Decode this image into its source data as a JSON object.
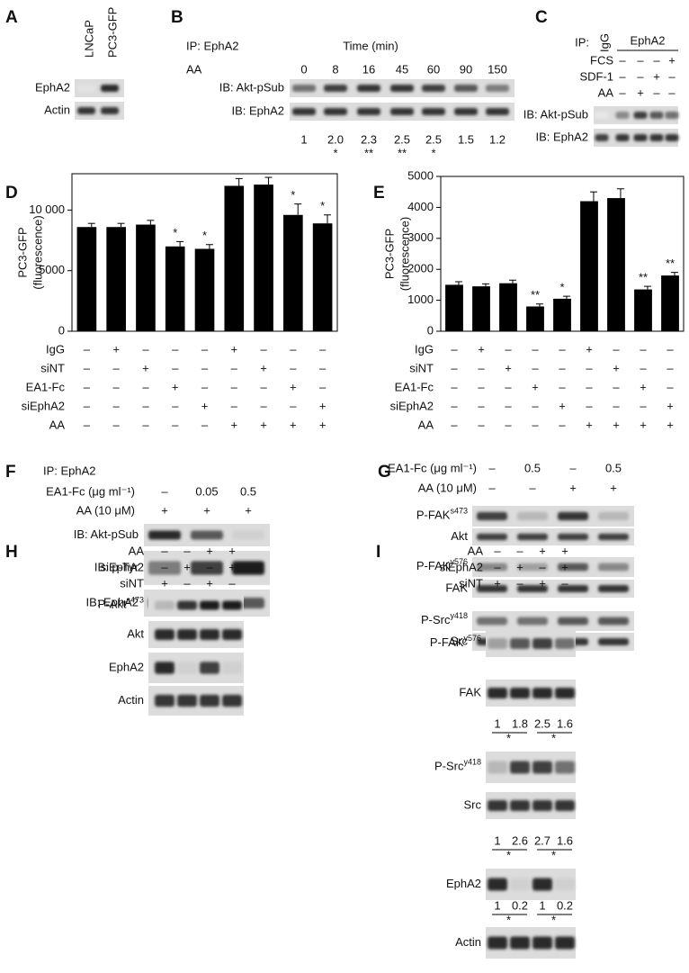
{
  "chart_data": [
    {
      "type": "bar",
      "panel": "D",
      "ylabel": [
        "PC3-GFP",
        "(fluorescence)"
      ],
      "color": "#000000",
      "values": [
        8600,
        8600,
        8800,
        7000,
        6800,
        12000,
        12100,
        9600,
        8900
      ],
      "errors": [
        300,
        300,
        350,
        400,
        350,
        600,
        600,
        900,
        700
      ],
      "annotations": [
        null,
        null,
        null,
        "*",
        "*",
        null,
        null,
        "*",
        "*"
      ],
      "ylim": [
        0,
        13000
      ],
      "yticks": [
        0,
        5000,
        {
          "value": 10000,
          "label": "10 000"
        }
      ],
      "conditions": [
        {
          "name": "IgG",
          "marks": [
            "–",
            "+",
            "–",
            "–",
            "–",
            "+",
            "–",
            "–",
            "–"
          ]
        },
        {
          "name": "siNT",
          "marks": [
            "–",
            "–",
            "+",
            "–",
            "–",
            "–",
            "+",
            "–",
            "–"
          ]
        },
        {
          "name": "EA1-Fc",
          "marks": [
            "–",
            "–",
            "–",
            "+",
            "–",
            "–",
            "–",
            "+",
            "–"
          ]
        },
        {
          "name": "siEphA2",
          "marks": [
            "–",
            "–",
            "–",
            "–",
            "+",
            "–",
            "–",
            "–",
            "+"
          ]
        },
        {
          "name": "AA",
          "marks": [
            "–",
            "–",
            "–",
            "–",
            "–",
            "+",
            "+",
            "+",
            "+"
          ]
        }
      ]
    },
    {
      "type": "bar",
      "panel": "E",
      "ylabel": [
        "PC3-GFP",
        "(fluorescence)"
      ],
      "color": "#000000",
      "values": [
        1500,
        1450,
        1550,
        800,
        1050,
        4200,
        4300,
        1350,
        1800
      ],
      "errors": [
        100,
        80,
        100,
        80,
        80,
        300,
        300,
        100,
        100
      ],
      "annotations": [
        null,
        null,
        null,
        "**",
        "*",
        null,
        null,
        "**",
        "**"
      ],
      "ylim": [
        0,
        5000
      ],
      "yticks": [
        0,
        1000,
        2000,
        3000,
        4000,
        5000
      ],
      "conditions": [
        {
          "name": "IgG",
          "marks": [
            "–",
            "+",
            "–",
            "–",
            "–",
            "+",
            "–",
            "–",
            "–"
          ]
        },
        {
          "name": "siNT",
          "marks": [
            "–",
            "–",
            "+",
            "–",
            "–",
            "–",
            "+",
            "–",
            "–"
          ]
        },
        {
          "name": "EA1-Fc",
          "marks": [
            "–",
            "–",
            "–",
            "+",
            "–",
            "–",
            "–",
            "+",
            "–"
          ]
        },
        {
          "name": "siEphA2",
          "marks": [
            "–",
            "–",
            "–",
            "–",
            "+",
            "–",
            "–",
            "–",
            "+"
          ]
        },
        {
          "name": "AA",
          "marks": [
            "–",
            "–",
            "–",
            "–",
            "–",
            "+",
            "+",
            "+",
            "+"
          ]
        }
      ]
    }
  ],
  "panels": {
    "A": {
      "label": "A",
      "lanes": [
        "LNCaP",
        "PC3-GFP"
      ],
      "rows": [
        "EphA2",
        "Actin"
      ]
    },
    "B": {
      "label": "B",
      "ip": "IP: EphA2",
      "time_label": "Time (min)",
      "aa": "AA",
      "times": [
        "0",
        "8",
        "16",
        "45",
        "60",
        "90",
        "150"
      ],
      "rows": [
        "IB: Akt-pSub",
        "IB: EphA2"
      ],
      "folds": [
        "1",
        "2.0",
        "2.3",
        "2.5",
        "2.5",
        "1.5",
        "1.2"
      ],
      "stars": [
        null,
        "*",
        "**",
        "**",
        "*",
        null,
        null
      ]
    },
    "C": {
      "label": "C",
      "ip": "IP:",
      "lanes": [
        "IgG",
        "EphA2"
      ],
      "conditions": [
        {
          "name": "FCS",
          "marks": [
            "–",
            "–",
            "–",
            "+"
          ]
        },
        {
          "name": "SDF-1",
          "marks": [
            "–",
            "–",
            "+",
            "–"
          ]
        },
        {
          "name": "AA",
          "marks": [
            "–",
            "+",
            "–",
            "–"
          ]
        }
      ],
      "rows": [
        "IB: Akt-pSub",
        "IB: EphA2"
      ]
    },
    "F": {
      "label": "F",
      "ip": "IP: EphA2",
      "conditions": [
        {
          "name": "EA1-Fc (μg ml⁻¹)",
          "marks": [
            "–",
            "0.05",
            "0.5"
          ]
        },
        {
          "name": "AA (10 μM)",
          "marks": [
            "+",
            "+",
            "+"
          ]
        }
      ],
      "rows": [
        "IB: Akt-pSub",
        "IB: p-Tyr",
        "IB: EphA2"
      ]
    },
    "G": {
      "label": "G",
      "conditions": [
        {
          "name": "EA1-Fc (μg ml⁻¹)",
          "marks": [
            "–",
            "0.5",
            "–",
            "0.5"
          ]
        },
        {
          "name": "AA (10 μM)",
          "marks": [
            "–",
            "–",
            "+",
            "+"
          ]
        }
      ],
      "rows": [
        {
          "name": "P-FAK",
          "sup": "s473"
        },
        "Akt",
        {
          "name": "P-FAK",
          "sup": "y576"
        },
        "FAK",
        {
          "name": "P-Src",
          "sup": "y418"
        },
        "Src"
      ]
    },
    "H": {
      "label": "H",
      "conditions": [
        {
          "name": "AA",
          "marks": [
            "–",
            "–",
            "+",
            "+"
          ]
        },
        {
          "name": "siEphA2",
          "marks": [
            "–",
            "+",
            "–",
            "+"
          ]
        },
        {
          "name": "siNT",
          "marks": [
            "+",
            "–",
            "+",
            "–"
          ]
        }
      ],
      "rows": [
        {
          "name": "P-Akt",
          "sup": "s473"
        },
        "Akt",
        "EphA2",
        "Actin"
      ]
    },
    "I": {
      "label": "I",
      "conditions": [
        {
          "name": "AA",
          "marks": [
            "–",
            "–",
            "+",
            "+"
          ]
        },
        {
          "name": "siEphA2",
          "marks": [
            "–",
            "+",
            "–",
            "+"
          ]
        },
        {
          "name": "siNT",
          "marks": [
            "+",
            "–",
            "+",
            "–"
          ]
        }
      ],
      "rows": [
        {
          "name": "P-FAK",
          "sup": "y576"
        },
        "FAK",
        {
          "name": "P-Src",
          "sup": "y418"
        },
        "Src",
        "EphA2",
        "Actin"
      ],
      "quant": [
        {
          "values": [
            "1",
            "1.8",
            "2.5",
            "1.6"
          ],
          "stars": [
            "*",
            "*"
          ]
        },
        {
          "values": [
            "1",
            "2.6",
            "2.7",
            "1.6"
          ],
          "stars": [
            "*",
            "*"
          ]
        },
        {
          "values": [
            "1",
            "0.2",
            "1",
            "0.2"
          ],
          "stars": [
            "*",
            "*"
          ]
        }
      ]
    }
  }
}
